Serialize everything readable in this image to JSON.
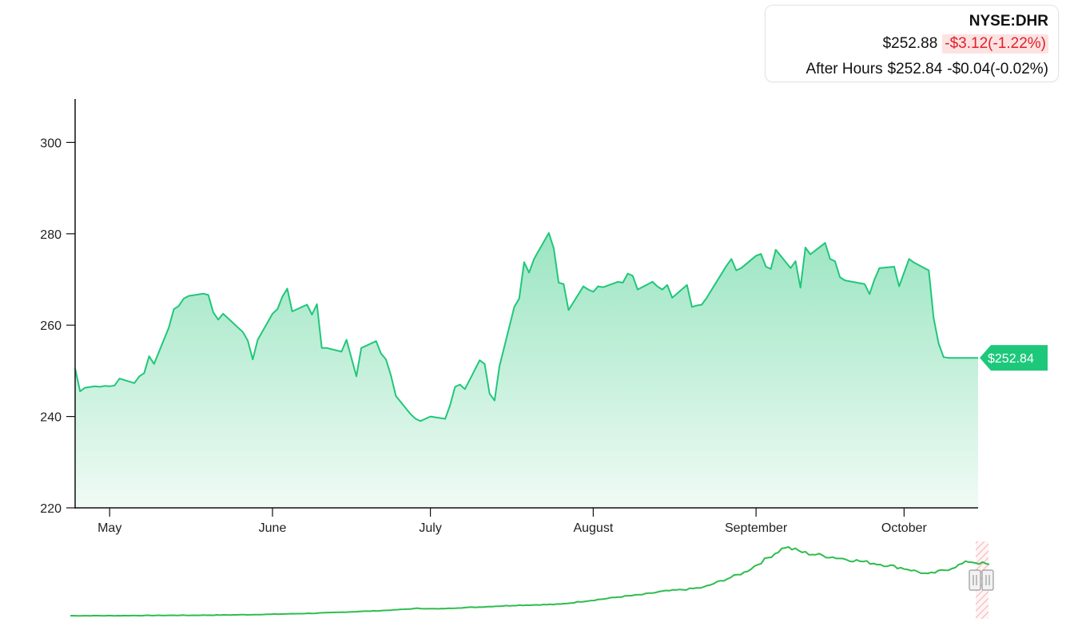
{
  "quote": {
    "symbol": "NYSE:DHR",
    "price": "$252.88",
    "change": "-$3.12(-1.22%)",
    "after_hours_label": "After Hours",
    "after_hours_price": "$252.84",
    "after_hours_change": "-$0.04(-0.02%)"
  },
  "colors": {
    "line": "#20c77a",
    "area_top": "#9be5c2",
    "area_bottom": "#f0fbf5",
    "badge": "#1dc87b",
    "negative": "#e0202a",
    "negative_bg": "#fde2e2",
    "axis": "#111111",
    "navigator_line": "#2ebd4f"
  },
  "last_price_badge": "$252.84",
  "chart_data": {
    "type": "area",
    "title": "",
    "xlabel": "",
    "ylabel": "",
    "ylim": [
      220,
      310
    ],
    "yticks": [
      220,
      240,
      260,
      280,
      300
    ],
    "xrange": [
      "2024-04-24",
      "2024-10-24"
    ],
    "xticks": [
      {
        "label": "May",
        "date": "2024-05-01"
      },
      {
        "label": "June",
        "date": "2024-06-03"
      },
      {
        "label": "July",
        "date": "2024-07-05"
      },
      {
        "label": "August",
        "date": "2024-08-07"
      },
      {
        "label": "September",
        "date": "2024-09-09"
      },
      {
        "label": "October",
        "date": "2024-10-09"
      }
    ],
    "grid": false,
    "series": [
      {
        "x": [
          "2024-04-24",
          "2024-04-25",
          "2024-04-26",
          "2024-04-28",
          "2024-04-29",
          "2024-04-30",
          "2024-05-01",
          "2024-05-02",
          "2024-05-03",
          "2024-05-06",
          "2024-05-07",
          "2024-05-08",
          "2024-05-09",
          "2024-05-10",
          "2024-05-13",
          "2024-05-14",
          "2024-05-15",
          "2024-05-16",
          "2024-05-17",
          "2024-05-20",
          "2024-05-21",
          "2024-05-22",
          "2024-05-23",
          "2024-05-24",
          "2024-05-28",
          "2024-05-29",
          "2024-05-30",
          "2024-05-31",
          "2024-06-03",
          "2024-06-04",
          "2024-06-05",
          "2024-06-06",
          "2024-06-07",
          "2024-06-10",
          "2024-06-11",
          "2024-06-12",
          "2024-06-13",
          "2024-06-14",
          "2024-06-17",
          "2024-06-18",
          "2024-06-20",
          "2024-06-21",
          "2024-06-24",
          "2024-06-25",
          "2024-06-26",
          "2024-06-27",
          "2024-06-28",
          "2024-07-01",
          "2024-07-02",
          "2024-07-03",
          "2024-07-05",
          "2024-07-08",
          "2024-07-09",
          "2024-07-10",
          "2024-07-11",
          "2024-07-12",
          "2024-07-15",
          "2024-07-16",
          "2024-07-17",
          "2024-07-18",
          "2024-07-19",
          "2024-07-22",
          "2024-07-23",
          "2024-07-24",
          "2024-07-25",
          "2024-07-26",
          "2024-07-29",
          "2024-07-30",
          "2024-07-31",
          "2024-08-01",
          "2024-08-02",
          "2024-08-05",
          "2024-08-06",
          "2024-08-07",
          "2024-08-08",
          "2024-08-09",
          "2024-08-12",
          "2024-08-13",
          "2024-08-14",
          "2024-08-15",
          "2024-08-16",
          "2024-08-19",
          "2024-08-20",
          "2024-08-21",
          "2024-08-22",
          "2024-08-23",
          "2024-08-26",
          "2024-08-27",
          "2024-08-28",
          "2024-08-29",
          "2024-08-30",
          "2024-09-03",
          "2024-09-04",
          "2024-09-05",
          "2024-09-06",
          "2024-09-09",
          "2024-09-10",
          "2024-09-11",
          "2024-09-12",
          "2024-09-13",
          "2024-09-16",
          "2024-09-17",
          "2024-09-18",
          "2024-09-19",
          "2024-09-20",
          "2024-09-23",
          "2024-09-24",
          "2024-09-25",
          "2024-09-26",
          "2024-09-27",
          "2024-09-30",
          "2024-10-01",
          "2024-10-02",
          "2024-10-03",
          "2024-10-04",
          "2024-10-07",
          "2024-10-08",
          "2024-10-09",
          "2024-10-10",
          "2024-10-11",
          "2024-10-14",
          "2024-10-15",
          "2024-10-16",
          "2024-10-17",
          "2024-10-18",
          "2024-10-21",
          "2024-10-22",
          "2024-10-23",
          "2024-10-24"
        ],
        "y": [
          250.5,
          245.5,
          246.3,
          246.6,
          246.5,
          246.7,
          246.6,
          246.8,
          248.3,
          247.3,
          248.8,
          249.5,
          253.2,
          251.5,
          259.5,
          263.5,
          264.2,
          265.8,
          266.4,
          266.9,
          266.6,
          262.8,
          261.2,
          262.5,
          258.5,
          256.6,
          252.5,
          256.8,
          262.5,
          263.5,
          266.2,
          268.0,
          263.0,
          264.5,
          262.3,
          264.6,
          255.0,
          255.0,
          254.2,
          256.8,
          248.8,
          255.0,
          256.5,
          253.8,
          252.5,
          249.0,
          244.5,
          240.5,
          239.5,
          239.0,
          240.0,
          239.5,
          242.5,
          246.5,
          247.0,
          246.0,
          252.3,
          251.5,
          245.0,
          243.5,
          251.0,
          264.0,
          265.8,
          273.8,
          271.5,
          274.5,
          280.2,
          276.8,
          269.3,
          269.0,
          263.3,
          268.5,
          267.8,
          267.3,
          268.5,
          268.3,
          269.5,
          269.3,
          271.3,
          270.8,
          267.8,
          269.5,
          268.5,
          267.8,
          268.8,
          266.0,
          268.8,
          264.0,
          264.3,
          264.5,
          266.0,
          273.0,
          274.5,
          272.0,
          272.5,
          275.2,
          275.6,
          272.8,
          272.3,
          276.5,
          272.5,
          274.0,
          268.2,
          277.0,
          275.5,
          278.0,
          274.5,
          274.0,
          270.5,
          269.8,
          269.2,
          269.0,
          266.8,
          270.0,
          272.5,
          272.8,
          268.5,
          271.5,
          274.5,
          273.7,
          272.0,
          261.5,
          256.0,
          253.0,
          252.84,
          252.84,
          252.84,
          252.84,
          252.84
        ]
      }
    ],
    "last_value": 252.84
  },
  "navigator": {
    "series": [
      {
        "y": [
          2,
          2,
          2,
          2.2,
          2.3,
          2.5,
          2.6,
          2.8,
          3.1,
          3.5,
          4.0,
          4.6,
          5.3,
          6.2,
          7.4,
          8.3,
          9.8,
          11.6,
          10.9,
          12.3,
          13.3,
          14.6,
          15.8,
          16.3,
          17.0,
          20.5,
          23.6,
          27.0,
          29.5,
          33.8,
          36.0,
          38.9,
          48.8,
          58.5,
          75.0,
          92.0,
          84.0,
          80.0,
          76.0,
          72.0,
          68.0,
          63.0,
          56.0,
          63.0,
          73.0,
          69.0
        ]
      }
    ]
  }
}
